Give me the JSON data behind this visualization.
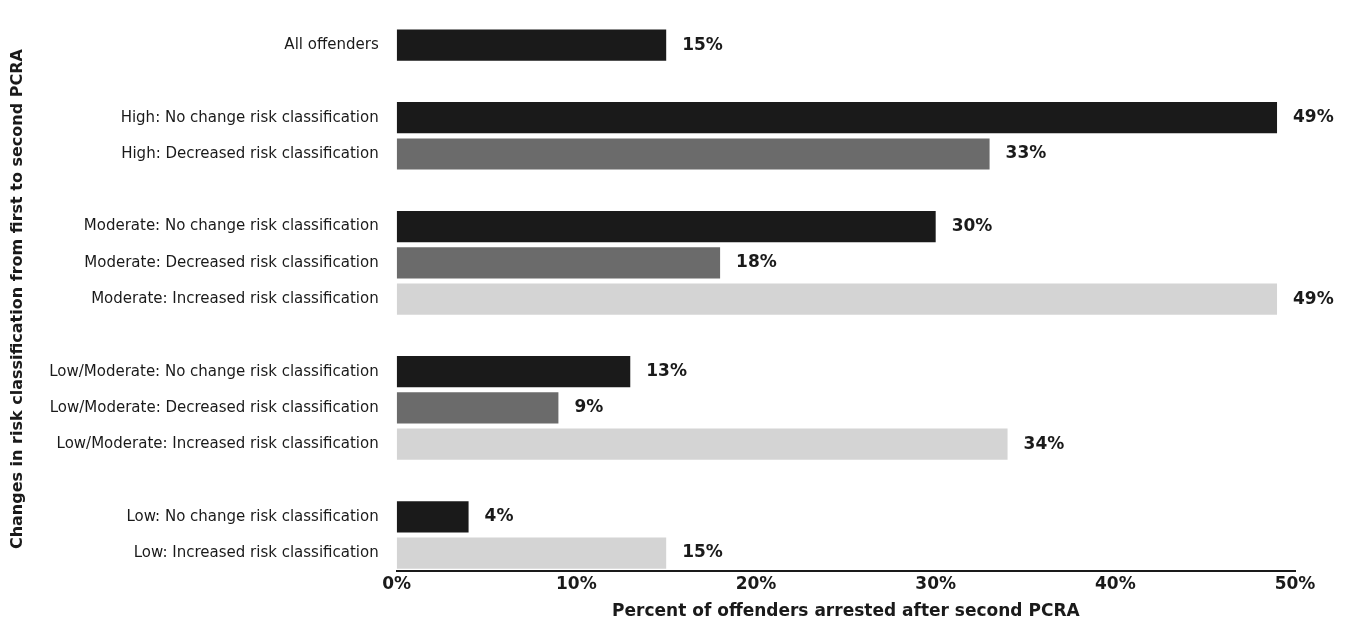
{
  "chart_data": {
    "type": "bar",
    "orientation": "horizontal",
    "xlabel": "Percent of offenders arrested after second PCRA",
    "ylabel": "Changes in risk classification from first to second PCRA",
    "categories": [
      "All offenders",
      null,
      "High: No change risk classification",
      "High: Decreased risk classification",
      null,
      "Moderate: No change risk classification",
      "Moderate: Decreased risk classification",
      "Moderate: Increased risk classification",
      null,
      "Low/Moderate: No change risk classification",
      "Low/Moderate: Decreased risk classification",
      "Low/Moderate: Increased risk classification",
      null,
      "Low: No change risk classification",
      "Low: Increased risk classification"
    ],
    "values": [
      15,
      null,
      49,
      33,
      null,
      30,
      18,
      49,
      null,
      13,
      9,
      34,
      null,
      4,
      15
    ],
    "colors": [
      "#1a1a1a",
      null,
      "#1a1a1a",
      "#6b6b6b",
      null,
      "#1a1a1a",
      "#6b6b6b",
      "#d4d4d4",
      null,
      "#1a1a1a",
      "#6b6b6b",
      "#d4d4d4",
      null,
      "#1a1a1a",
      "#d4d4d4"
    ],
    "value_labels": [
      "15%",
      null,
      "49%",
      "33%",
      null,
      "30%",
      "18%",
      "49%",
      null,
      "13%",
      "9%",
      "34%",
      null,
      "4%",
      "15%"
    ],
    "xlim": [
      0,
      50
    ],
    "xticks": [
      {
        "value": 0,
        "label": "0%"
      },
      {
        "value": 10,
        "label": "10%"
      },
      {
        "value": 20,
        "label": "20%"
      },
      {
        "value": 30,
        "label": "30%"
      },
      {
        "value": 40,
        "label": "40%"
      },
      {
        "value": 50,
        "label": "50%"
      }
    ],
    "grid": false,
    "legend": false
  }
}
